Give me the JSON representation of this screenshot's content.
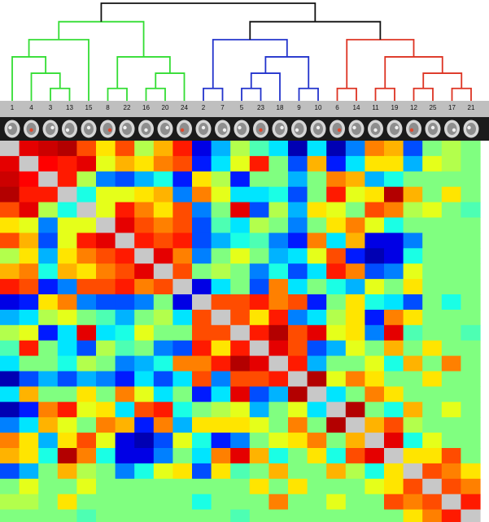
{
  "chart_data": {
    "type": "heatmap",
    "order": [
      "1",
      "4",
      "3",
      "13",
      "15",
      "8",
      "22",
      "16",
      "20",
      "24",
      "2",
      "7",
      "5",
      "23",
      "18",
      "9",
      "10",
      "6",
      "14",
      "11",
      "19",
      "12",
      "25",
      "17",
      "21"
    ],
    "clusters": [
      {
        "color": "#33dd33",
        "members": [
          "1",
          "4",
          "3",
          "13",
          "15",
          "8",
          "22",
          "16",
          "20",
          "24"
        ]
      },
      {
        "color": "#2233cc",
        "members": [
          "2",
          "7",
          "5",
          "23",
          "18",
          "9",
          "10"
        ]
      },
      {
        "color": "#dd3322",
        "members": [
          "6",
          "14",
          "11",
          "19",
          "12",
          "25",
          "17",
          "21"
        ]
      }
    ],
    "dendrogram_link_color": "#111111",
    "diagonal_color": "#c8c8c8",
    "colormap": "jet",
    "value_range": [
      -1,
      1
    ],
    "matrix": [
      [
        null,
        0.8,
        0.85,
        0.9,
        0.6,
        0.3,
        0.6,
        0.1,
        0.4,
        0.7,
        -0.8,
        -0.4,
        0.1,
        -0.1,
        -0.3,
        -0.9,
        -0.3,
        -0.9,
        -0.5,
        0.5,
        0.4,
        -0.6,
        0.0,
        0.1,
        0.0
      ],
      [
        0.8,
        null,
        0.75,
        0.7,
        0.8,
        0.2,
        0.4,
        0.3,
        0.5,
        0.6,
        -0.7,
        -0.3,
        0.2,
        0.7,
        0.0,
        -0.6,
        0.4,
        -0.7,
        -0.3,
        0.3,
        0.3,
        -0.4,
        0.2,
        0.1,
        0.0
      ],
      [
        0.85,
        0.75,
        null,
        0.7,
        0.1,
        -0.5,
        -0.6,
        -0.4,
        -0.2,
        -0.7,
        0.3,
        0.1,
        -0.7,
        0.0,
        0.0,
        -0.4,
        0.0,
        0.5,
        0.4,
        -0.4,
        -0.2,
        0.0,
        0.0,
        0.0,
        0.0
      ],
      [
        0.9,
        0.7,
        0.7,
        null,
        -0.2,
        0.2,
        0.2,
        0.3,
        0.4,
        -0.5,
        0.5,
        0.2,
        -0.3,
        -0.3,
        -0.2,
        -0.6,
        0.0,
        0.7,
        0.2,
        0.3,
        0.9,
        0.4,
        0.0,
        0.3,
        0.0
      ],
      [
        0.6,
        0.8,
        0.1,
        -0.2,
        null,
        0.2,
        0.7,
        0.5,
        0.3,
        0.6,
        -0.5,
        0.0,
        0.8,
        -0.6,
        0.1,
        -0.4,
        0.3,
        0.2,
        0.0,
        0.6,
        0.5,
        0.1,
        0.2,
        0.0,
        -0.1
      ],
      [
        0.3,
        0.2,
        -0.5,
        0.2,
        0.2,
        null,
        0.8,
        0.6,
        0.5,
        0.6,
        -0.6,
        -0.1,
        -0.3,
        0.1,
        0.0,
        -0.5,
        0.0,
        0.3,
        0.5,
        0.2,
        -0.2,
        0.0,
        0.0,
        0.0,
        0.0
      ],
      [
        0.6,
        0.4,
        -0.6,
        0.2,
        0.7,
        0.8,
        null,
        0.7,
        0.6,
        0.7,
        -0.6,
        -0.4,
        -0.2,
        -0.1,
        -0.5,
        -0.7,
        0.5,
        -0.3,
        0.4,
        -0.8,
        -0.8,
        -0.5,
        0.0,
        0.0,
        0.0
      ],
      [
        0.1,
        0.3,
        -0.4,
        0.3,
        0.5,
        0.6,
        0.7,
        null,
        0.8,
        0.5,
        -0.5,
        0.0,
        0.2,
        0.0,
        -0.4,
        -0.3,
        0.2,
        0.6,
        -0.7,
        -0.9,
        -0.8,
        -0.2,
        0.0,
        0.0,
        0.0
      ],
      [
        0.4,
        0.5,
        -0.2,
        0.4,
        0.3,
        0.5,
        0.6,
        0.8,
        null,
        0.6,
        0.0,
        0.1,
        0.0,
        -0.5,
        -0.2,
        -0.6,
        -0.3,
        0.7,
        0.5,
        -0.6,
        -0.5,
        0.2,
        0.0,
        0.0,
        0.0
      ],
      [
        0.7,
        0.6,
        -0.7,
        -0.5,
        0.6,
        0.6,
        0.7,
        0.5,
        0.6,
        null,
        -0.8,
        -0.3,
        0.0,
        -0.6,
        0.5,
        -0.3,
        0.0,
        -0.2,
        -0.4,
        0.2,
        0.0,
        0.3,
        0.0,
        0.0,
        0.0
      ],
      [
        -0.8,
        -0.7,
        0.3,
        0.5,
        -0.5,
        -0.6,
        -0.6,
        -0.5,
        0.0,
        -0.8,
        null,
        0.6,
        0.6,
        0.7,
        0.5,
        0.6,
        -0.7,
        0.0,
        0.3,
        -0.2,
        -0.3,
        -0.6,
        0.0,
        -0.2,
        0.0
      ],
      [
        -0.4,
        -0.3,
        0.1,
        0.2,
        0.0,
        -0.1,
        -0.4,
        0.0,
        0.1,
        -0.3,
        0.6,
        null,
        0.6,
        0.3,
        0.7,
        -0.5,
        -0.3,
        0.1,
        0.3,
        -0.7,
        0.5,
        0.3,
        0.0,
        0.0,
        0.0
      ],
      [
        0.1,
        0.2,
        -0.7,
        -0.3,
        0.8,
        -0.3,
        -0.2,
        0.2,
        0.0,
        0.0,
        0.6,
        0.6,
        null,
        0.7,
        0.9,
        0.6,
        0.8,
        0.2,
        0.3,
        -0.5,
        0.8,
        -0.1,
        0.0,
        0.0,
        -0.1
      ],
      [
        -0.1,
        0.7,
        0.0,
        -0.3,
        -0.6,
        0.1,
        -0.1,
        0.0,
        -0.5,
        -0.6,
        0.7,
        0.3,
        0.7,
        null,
        0.8,
        0.6,
        -0.6,
        -0.4,
        0.2,
        0.0,
        0.4,
        0.0,
        0.3,
        0.0,
        0.0
      ],
      [
        -0.3,
        0.0,
        0.0,
        -0.2,
        0.1,
        0.0,
        -0.5,
        -0.4,
        -0.2,
        0.5,
        0.5,
        0.7,
        0.9,
        0.8,
        null,
        0.7,
        -0.4,
        0.0,
        0.0,
        0.2,
        -0.2,
        0.4,
        0.0,
        0.5,
        0.0
      ],
      [
        -0.9,
        -0.6,
        -0.4,
        -0.6,
        -0.4,
        -0.5,
        -0.7,
        -0.3,
        -0.6,
        -0.3,
        0.6,
        -0.5,
        0.6,
        0.6,
        0.7,
        null,
        0.9,
        0.2,
        0.5,
        0.3,
        0.0,
        0.0,
        0.3,
        0.0,
        0.0
      ],
      [
        -0.3,
        0.4,
        0.0,
        0.0,
        0.3,
        0.0,
        0.5,
        0.2,
        -0.3,
        0.0,
        -0.7,
        -0.3,
        0.8,
        -0.6,
        -0.4,
        0.9,
        null,
        -0.3,
        0.0,
        0.5,
        0.3,
        0.0,
        0.0,
        0.0,
        0.0
      ],
      [
        -0.9,
        -0.7,
        0.5,
        0.7,
        0.2,
        0.3,
        -0.3,
        0.6,
        0.7,
        -0.2,
        0.0,
        0.1,
        0.2,
        -0.4,
        0.0,
        0.2,
        -0.3,
        null,
        0.9,
        0.0,
        -0.2,
        0.4,
        0.0,
        0.2,
        0.0
      ],
      [
        -0.5,
        -0.3,
        0.4,
        0.2,
        0.0,
        0.5,
        0.4,
        -0.7,
        0.5,
        -0.4,
        0.3,
        0.3,
        0.3,
        0.2,
        0.0,
        0.5,
        0.0,
        0.9,
        null,
        0.4,
        0.6,
        0.1,
        0.0,
        0.0,
        0.0
      ],
      [
        0.5,
        0.3,
        -0.4,
        0.3,
        0.6,
        0.2,
        -0.8,
        -0.9,
        -0.6,
        0.2,
        -0.2,
        -0.7,
        -0.5,
        0.0,
        0.2,
        0.3,
        0.5,
        0.0,
        0.4,
        null,
        0.8,
        -0.2,
        0.2,
        0.0,
        0.0
      ],
      [
        0.4,
        0.3,
        -0.2,
        0.9,
        0.5,
        -0.2,
        -0.8,
        -0.8,
        -0.5,
        0.0,
        -0.3,
        0.5,
        0.8,
        0.4,
        -0.2,
        0.0,
        0.3,
        -0.2,
        0.6,
        0.8,
        null,
        0.3,
        0.3,
        0.6,
        0.0
      ],
      [
        -0.6,
        -0.4,
        0.0,
        0.4,
        0.1,
        0.0,
        -0.5,
        -0.2,
        0.2,
        0.3,
        -0.6,
        0.3,
        -0.1,
        0.0,
        0.4,
        0.0,
        0.0,
        0.4,
        0.1,
        -0.2,
        0.3,
        null,
        0.6,
        0.5,
        0.3
      ],
      [
        0.0,
        0.2,
        0.0,
        0.0,
        0.2,
        0.0,
        0.0,
        0.0,
        0.0,
        0.0,
        0.0,
        0.0,
        0.0,
        0.3,
        0.0,
        0.3,
        0.0,
        0.0,
        0.0,
        0.2,
        0.3,
        0.6,
        null,
        0.6,
        0.5
      ],
      [
        0.1,
        0.1,
        0.0,
        0.3,
        0.0,
        0.0,
        0.0,
        0.0,
        0.0,
        0.0,
        -0.2,
        0.0,
        0.0,
        0.0,
        0.5,
        0.0,
        0.0,
        0.2,
        0.0,
        0.0,
        0.6,
        0.5,
        0.6,
        null,
        0.7
      ],
      [
        0.0,
        0.0,
        0.0,
        0.0,
        -0.1,
        0.0,
        0.0,
        0.0,
        0.0,
        0.0,
        0.0,
        0.0,
        -0.1,
        0.0,
        0.0,
        0.0,
        0.0,
        0.0,
        0.0,
        0.0,
        0.0,
        0.3,
        0.5,
        0.7,
        null
      ]
    ]
  }
}
